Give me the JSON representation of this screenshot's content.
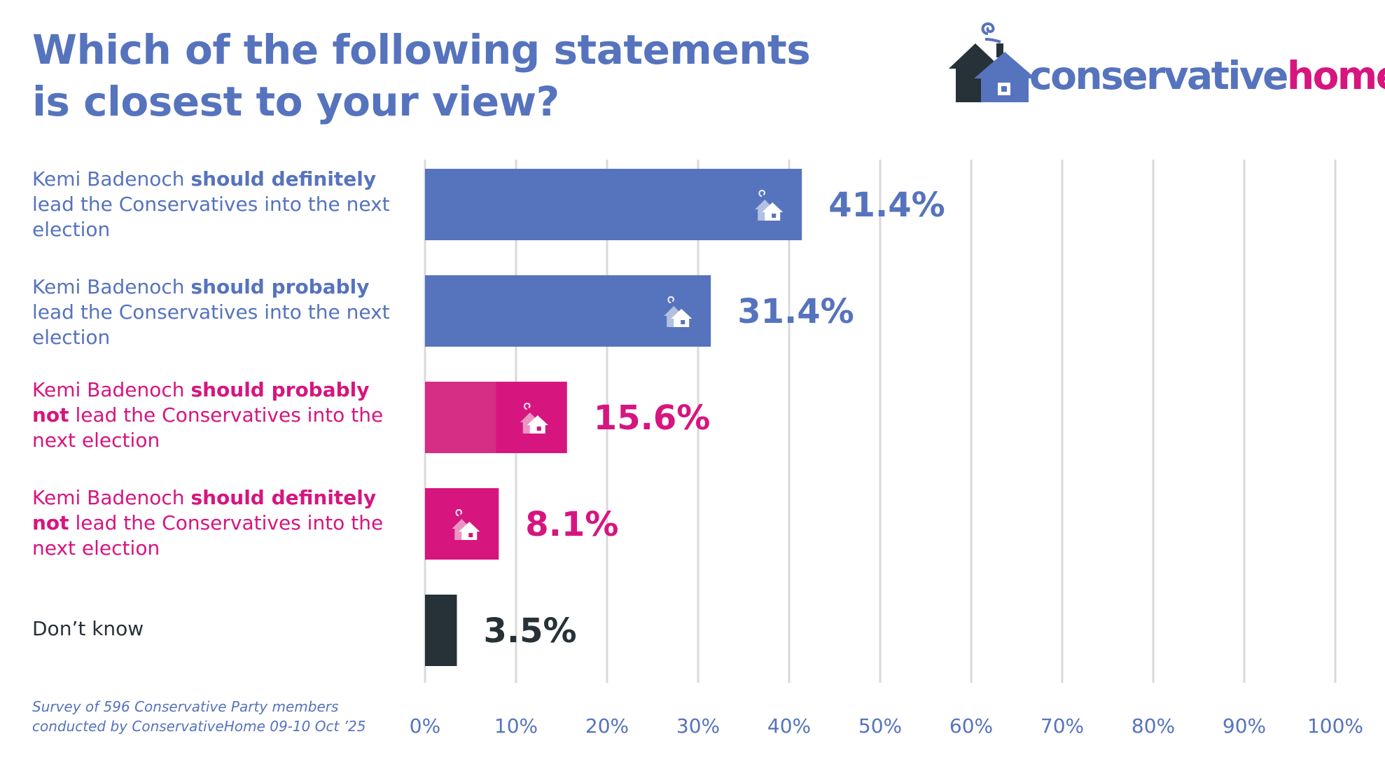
{
  "title": {
    "line1": "Which of the following statements",
    "line2": "is closest to your view?"
  },
  "logo": {
    "text_main": "conservative",
    "text_accent": "home",
    "icon": "house-with-smoke-icon"
  },
  "colors": {
    "blue": "#5673bd",
    "pink": "#d6157f",
    "pink_light": "#d52e85",
    "dark": "#263238",
    "grid": "#d9d9d9"
  },
  "statements": [
    {
      "pre": "Kemi Badenoch ",
      "bold": "should definitely",
      "line2_bold": "",
      "rest": "lead the Conservatives into the next",
      "line3": "election",
      "color": "#5673bd"
    },
    {
      "pre": "Kemi Badenoch ",
      "bold": "should probably",
      "line2_bold": "",
      "rest": "lead the Conservatives into the next",
      "line3": "election",
      "color": "#5673bd"
    },
    {
      "pre": "Kemi Badenoch ",
      "bold": "should probably",
      "line2_bold": "not",
      "rest": " lead the Conservatives into the",
      "line3": "next election",
      "color": "#d6157f"
    },
    {
      "pre": "Kemi Badenoch ",
      "bold": "should definitely",
      "line2_bold": "not",
      "rest": " lead the Conservatives into the",
      "line3": "next election",
      "color": "#d6157f"
    },
    {
      "pre": "Don’t know",
      "bold": "",
      "line2_bold": "",
      "rest": "",
      "line3": "",
      "color": "#263238"
    }
  ],
  "chart_data": {
    "type": "bar",
    "orientation": "horizontal",
    "categories": [
      "Kemi Badenoch should definitely lead the Conservatives into the next election",
      "Kemi Badenoch should probably lead the Conservatives into the next election",
      "Kemi Badenoch should probably not lead the Conservatives into the next election",
      "Kemi Badenoch should definitely not lead the Conservatives into the next election",
      "Don’t know"
    ],
    "values": [
      41.4,
      31.4,
      15.6,
      8.1,
      3.5
    ],
    "value_labels": [
      "41.4%",
      "31.4%",
      "15.6%",
      "8.1%",
      "3.5%"
    ],
    "bar_colors": [
      "#5673bd",
      "#5673bd",
      "#d6157f",
      "#d6157f",
      "#263238"
    ],
    "bar_icons": [
      "house-icon",
      "house-icon",
      "house-icon",
      "house-icon",
      ""
    ],
    "xlim": [
      0,
      100
    ],
    "xticks": [
      0,
      10,
      20,
      30,
      40,
      50,
      60,
      70,
      80,
      90,
      100
    ],
    "xtick_labels": [
      "0%",
      "10%",
      "20%",
      "30%",
      "40%",
      "50%",
      "60%",
      "70%",
      "80%",
      "90%",
      "100%"
    ],
    "grid": true,
    "title": "Which of the following statements is closest to your view?"
  },
  "source": {
    "line1": "Survey of 596 Conservative Party members",
    "line2": "conducted by ConservativeHome 09-10 Oct ’25"
  }
}
